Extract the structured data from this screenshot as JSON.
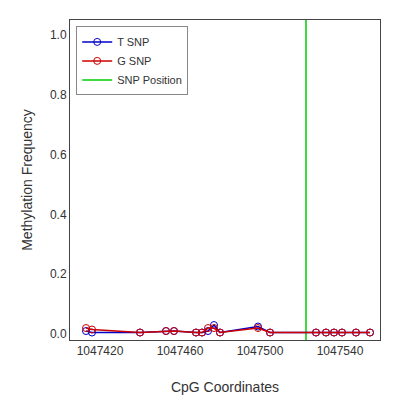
{
  "chart_data": {
    "type": "line",
    "xlabel": "CpG Coordinates",
    "ylabel": "Methylation Frequency",
    "x": [
      1047413,
      1047416,
      1047440,
      1047453,
      1047457,
      1047468,
      1047471,
      1047474,
      1047477,
      1047480,
      1047499,
      1047505,
      1047528,
      1047533,
      1047537,
      1047541,
      1047548,
      1047555
    ],
    "series": [
      {
        "name": "T SNP",
        "color": "#0000CC",
        "marker": "circle-open",
        "line_style": "solid",
        "values": [
          0.01,
          0.005,
          0.005,
          0.01,
          0.01,
          0.005,
          0.005,
          0.01,
          0.03,
          0.005,
          0.025,
          0.005,
          0.005,
          0.005,
          0.005,
          0.005,
          0.005,
          0.005
        ]
      },
      {
        "name": "G SNP",
        "color": "#CC0000",
        "marker": "circle-open",
        "line_style": "solid",
        "values": [
          0.02,
          0.015,
          0.005,
          0.01,
          0.01,
          0.005,
          0.005,
          0.02,
          0.02,
          0.005,
          0.02,
          0.005,
          0.005,
          0.005,
          0.005,
          0.005,
          0.005,
          0.005
        ]
      },
      {
        "name": "SNP Position",
        "type": "vline",
        "color": "#00CC00",
        "line_style": "solid",
        "x": 1047523
      }
    ],
    "xlim": [
      1047405,
      1047560
    ],
    "xticks": [
      1047420,
      1047460,
      1047500,
      1047540
    ],
    "ylim": [
      -0.02,
      1.05
    ],
    "yticks": [
      {
        "value": 0.0,
        "label": "0.0"
      },
      0.2,
      0.4,
      0.6,
      0.8,
      {
        "value": 1.0,
        "label": "1.0"
      }
    ],
    "grid": false,
    "legend": "upper left"
  }
}
